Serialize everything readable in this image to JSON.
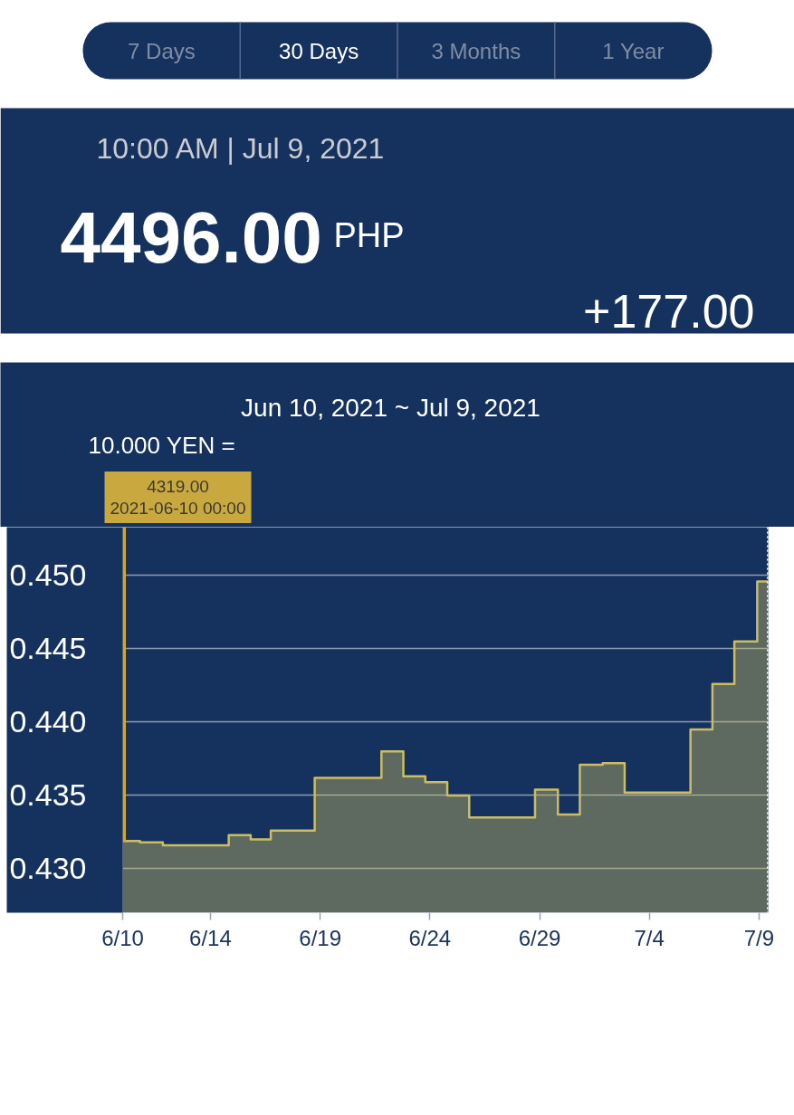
{
  "chart_data": {
    "type": "area",
    "title": "Jun 10, 2021 ~ Jul 9, 2021",
    "subtitle": "10:00 AM | Jul 9, 2021",
    "ylabel": "10.000 YEN =",
    "annotations": [
      "7 Days",
      "30 Days",
      "3 Months",
      "1 Year",
      "4496.00",
      "PHP",
      "+177.00",
      "4319.00\n2021-06-10 00:00"
    ],
    "x": [
      "2021-06-10T00:00",
      "2021-06-10T19:00",
      "2021-06-10T19:00",
      "2021-06-11T20:00",
      "2021-06-11T20:00",
      "2021-06-14T20:00",
      "2021-06-14T20:00",
      "2021-06-15T20:00",
      "2021-06-15T20:00",
      "2021-06-16T18:00",
      "2021-06-16T18:00",
      "2021-06-18T18:00",
      "2021-06-18T18:00",
      "2021-06-21T19:00",
      "2021-06-21T19:00",
      "2021-06-22T19:00",
      "2021-06-22T19:00",
      "2021-06-23T19:00",
      "2021-06-23T19:00",
      "2021-06-24T19:00",
      "2021-06-24T19:00",
      "2021-06-25T19:00",
      "2021-06-25T19:00",
      "2021-06-28T19:00",
      "2021-06-28T19:00",
      "2021-06-29T20:00",
      "2021-06-29T20:00",
      "2021-06-30T20:00",
      "2021-06-30T20:00",
      "2021-07-01T21:00",
      "2021-07-01T21:00",
      "2021-07-02T21:00",
      "2021-07-02T21:00",
      "2021-07-05T21:00",
      "2021-07-05T21:00",
      "2021-07-06T21:00",
      "2021-07-06T21:00",
      "2021-07-07T21:00",
      "2021-07-07T21:00",
      "2021-07-08T22:00",
      "2021-07-08T22:00",
      "2021-07-09T10:00"
    ],
    "series": [
      {
        "color": "#cdbd62",
        "values": [
          0.4319,
          0.4319,
          0.4318,
          0.4318,
          0.4316,
          0.4316,
          0.4323,
          0.4323,
          0.432,
          0.432,
          0.4326,
          0.4326,
          0.4362,
          0.4362,
          0.438,
          0.438,
          0.4363,
          0.4363,
          0.4359,
          0.4359,
          0.435,
          0.435,
          0.4335,
          0.4335,
          0.4354,
          0.4354,
          0.4337,
          0.4337,
          0.4371,
          0.4371,
          0.4372,
          0.4372,
          0.4352,
          0.4352,
          0.4395,
          0.4395,
          0.4426,
          0.4426,
          0.4455,
          0.4455,
          0.4496,
          0.4496
        ]
      }
    ],
    "xlim": [
      "2021-06-10T00:00",
      "2021-07-09T10:00"
    ],
    "ylim": [
      0.427,
      0.4533
    ],
    "xticks": [
      {
        "value": "2021-06-10",
        "label": "6/10"
      },
      {
        "value": "2021-06-14",
        "label": "6/14"
      },
      {
        "value": "2021-06-19",
        "label": "6/19"
      },
      {
        "value": "2021-06-24",
        "label": "6/24"
      },
      {
        "value": "2021-06-29",
        "label": "6/29"
      },
      {
        "value": "2021-07-04",
        "label": "7/4"
      },
      {
        "value": "2021-07-09",
        "label": "7/9"
      }
    ],
    "yticks": [
      {
        "value": 0.43,
        "label": "0.430"
      },
      {
        "value": 0.435,
        "label": "0.435"
      },
      {
        "value": 0.44,
        "label": "0.440"
      },
      {
        "value": 0.445,
        "label": "0.445"
      },
      {
        "value": 0.45,
        "label": "0.450"
      }
    ],
    "grid": "y",
    "line_style": "solid",
    "ref_lines": [
      {
        "axis": "x",
        "value": "2021-07-09T10:00",
        "color": "#ffffff",
        "line_style": "dotted"
      }
    ]
  }
}
